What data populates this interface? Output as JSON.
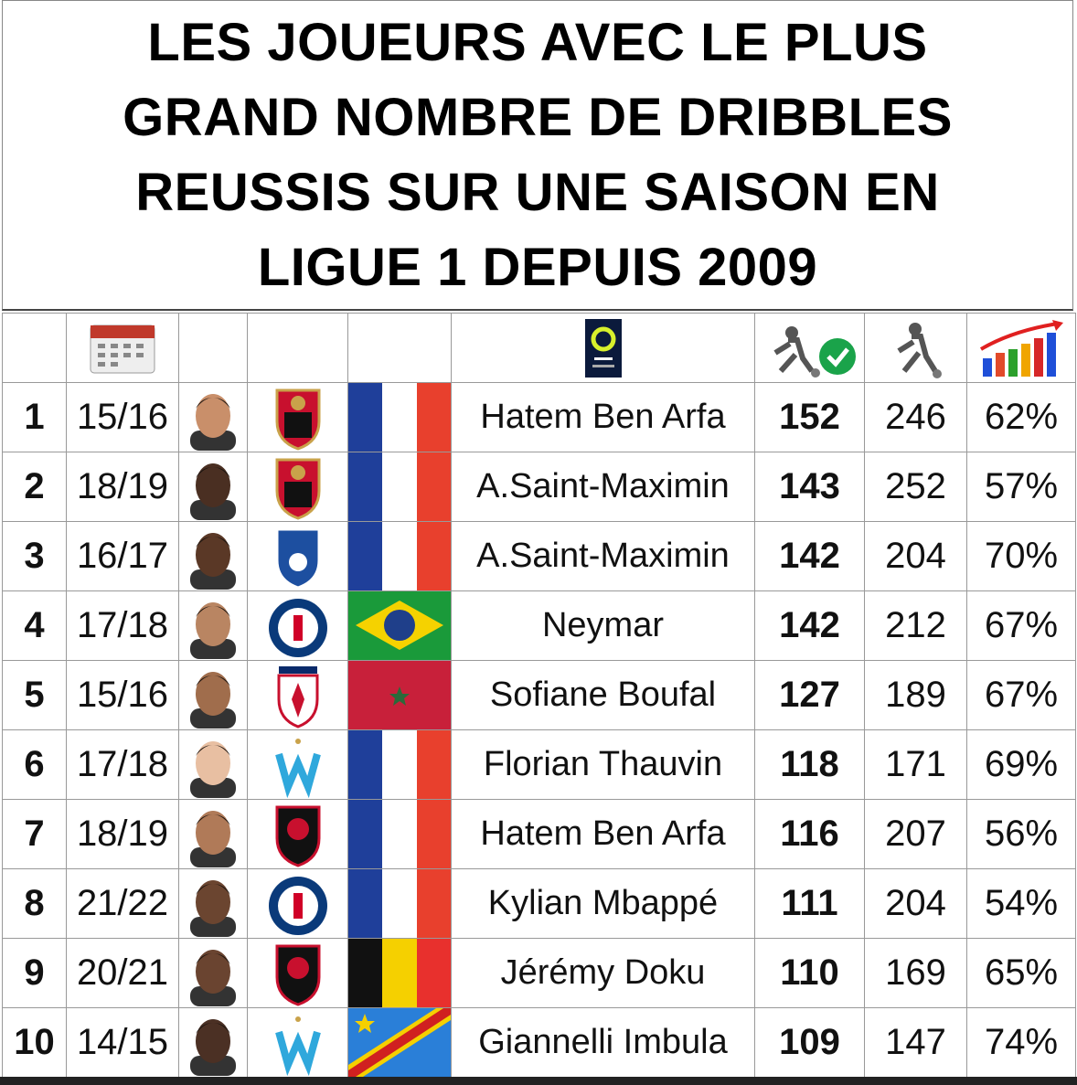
{
  "header": {
    "title_lines": [
      "LES JOUEURS AVEC LE PLUS",
      "GRAND NOMBRE DE DRIBBLES",
      "REUSSIS SUR UNE SAISON EN",
      "LIGUE 1 DEPUIS 2009"
    ]
  },
  "table": {
    "rows": [
      {
        "rank": 1,
        "season": "15/16",
        "player": "Hatem Ben Arfa",
        "successful": 152,
        "attempted": 246,
        "rate": "62%"
      },
      {
        "rank": 2,
        "season": "18/19",
        "player": "A.Saint-Maximin",
        "successful": 143,
        "attempted": 252,
        "rate": "57%"
      },
      {
        "rank": 3,
        "season": "16/17",
        "player": "A.Saint-Maximin",
        "successful": 142,
        "attempted": 204,
        "rate": "70%"
      },
      {
        "rank": 4,
        "season": "17/18",
        "player": "Neymar",
        "successful": 142,
        "attempted": 212,
        "rate": "67%"
      },
      {
        "rank": 5,
        "season": "15/16",
        "player": "Sofiane Boufal",
        "successful": 127,
        "attempted": 189,
        "rate": "67%"
      },
      {
        "rank": 6,
        "season": "17/18",
        "player": "Florian Thauvin",
        "successful": 118,
        "attempted": 171,
        "rate": "69%"
      },
      {
        "rank": 7,
        "season": "18/19",
        "player": "Hatem Ben Arfa",
        "successful": 116,
        "attempted": 207,
        "rate": "56%"
      },
      {
        "rank": 8,
        "season": "21/22",
        "player": "Kylian Mbappé",
        "successful": 111,
        "attempted": 204,
        "rate": "54%"
      },
      {
        "rank": 9,
        "season": "20/21",
        "player": "Jérémy Doku",
        "successful": 110,
        "attempted": 169,
        "rate": "65%"
      },
      {
        "rank": 10,
        "season": "14/15",
        "player": "Giannelli Imbula",
        "successful": 109,
        "attempted": 147,
        "rate": "74%"
      }
    ]
  }
}
